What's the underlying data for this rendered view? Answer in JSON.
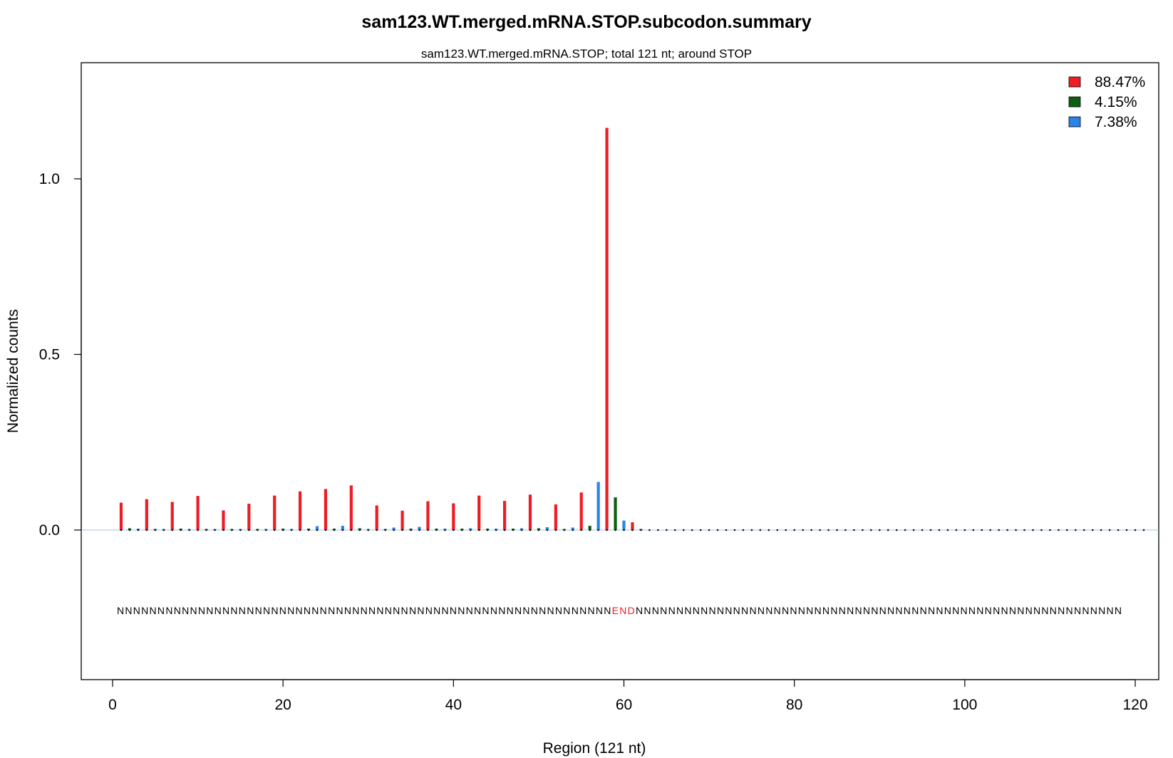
{
  "chart_data": {
    "type": "bar",
    "title": "sam123.WT.merged.mRNA.STOP.subcodon.summary",
    "subtitle": "sam123.WT.merged.mRNA.STOP; total 121 nt; around STOP",
    "xlabel": "Region (121 nt)",
    "ylabel": "Normalized counts",
    "xlim": [
      0,
      121
    ],
    "ylim": [
      -0.44,
      1.32
    ],
    "xticks": [
      0,
      20,
      40,
      60,
      80,
      100,
      120
    ],
    "yticks": [
      0.0,
      0.5,
      1.0
    ],
    "ytick_labels": [
      "0.0",
      "0.5",
      "1.0"
    ],
    "grid": false,
    "legend_position": "top-right",
    "baseline_color": "#9cc9dc",
    "series": [
      {
        "name": "88.47%",
        "color": "#ee1c25",
        "frame": 0,
        "points": [
          [
            1,
            0.078
          ],
          [
            4,
            0.088
          ],
          [
            7,
            0.08
          ],
          [
            10,
            0.097
          ],
          [
            13,
            0.056
          ],
          [
            16,
            0.075
          ],
          [
            19,
            0.098
          ],
          [
            22,
            0.11
          ],
          [
            25,
            0.117
          ],
          [
            28,
            0.127
          ],
          [
            31,
            0.07
          ],
          [
            34,
            0.055
          ],
          [
            37,
            0.082
          ],
          [
            40,
            0.076
          ],
          [
            43,
            0.098
          ],
          [
            46,
            0.083
          ],
          [
            49,
            0.101
          ],
          [
            52,
            0.073
          ],
          [
            55,
            0.107
          ],
          [
            58,
            1.145
          ],
          [
            61,
            0.022
          ]
        ]
      },
      {
        "name": "4.15%",
        "color": "#0d5e12",
        "frame": 1,
        "points": [
          [
            2,
            0.005
          ],
          [
            5,
            0.003
          ],
          [
            8,
            0.004
          ],
          [
            11,
            0.003
          ],
          [
            14,
            0.003
          ],
          [
            17,
            0.003
          ],
          [
            20,
            0.004
          ],
          [
            23,
            0.004
          ],
          [
            26,
            0.004
          ],
          [
            29,
            0.005
          ],
          [
            32,
            0.003
          ],
          [
            35,
            0.004
          ],
          [
            38,
            0.004
          ],
          [
            41,
            0.004
          ],
          [
            44,
            0.004
          ],
          [
            47,
            0.004
          ],
          [
            50,
            0.005
          ],
          [
            53,
            0.003
          ],
          [
            56,
            0.012
          ],
          [
            59,
            0.093
          ],
          [
            62,
            0.002
          ]
        ]
      },
      {
        "name": "7.38%",
        "color": "#2c83e6",
        "frame": 2,
        "points": [
          [
            3,
            0.004
          ],
          [
            6,
            0.002
          ],
          [
            9,
            0.002
          ],
          [
            12,
            0.002
          ],
          [
            15,
            0.002
          ],
          [
            18,
            0.002
          ],
          [
            21,
            0.003
          ],
          [
            24,
            0.011
          ],
          [
            27,
            0.012
          ],
          [
            30,
            0.003
          ],
          [
            33,
            0.007
          ],
          [
            36,
            0.009
          ],
          [
            39,
            0.004
          ],
          [
            42,
            0.005
          ],
          [
            45,
            0.004
          ],
          [
            48,
            0.005
          ],
          [
            51,
            0.008
          ],
          [
            54,
            0.007
          ],
          [
            57,
            0.137
          ],
          [
            60,
            0.027
          ]
        ]
      }
    ],
    "sequence": {
      "left": "NNNNNNNNNNNNNNNNNNNNNNNNNNNNNNNNNNNNNNNNNNNNNNNNNNNNNNNNNNNNN",
      "highlight": "END",
      "right": "NNNNNNNNNNNNNNNNNNNNNNNNNNNNNNNNNNNNNNNNNNNNNNNNNNNNNNNNNNNN",
      "highlight_color": "#ee1c25"
    }
  }
}
